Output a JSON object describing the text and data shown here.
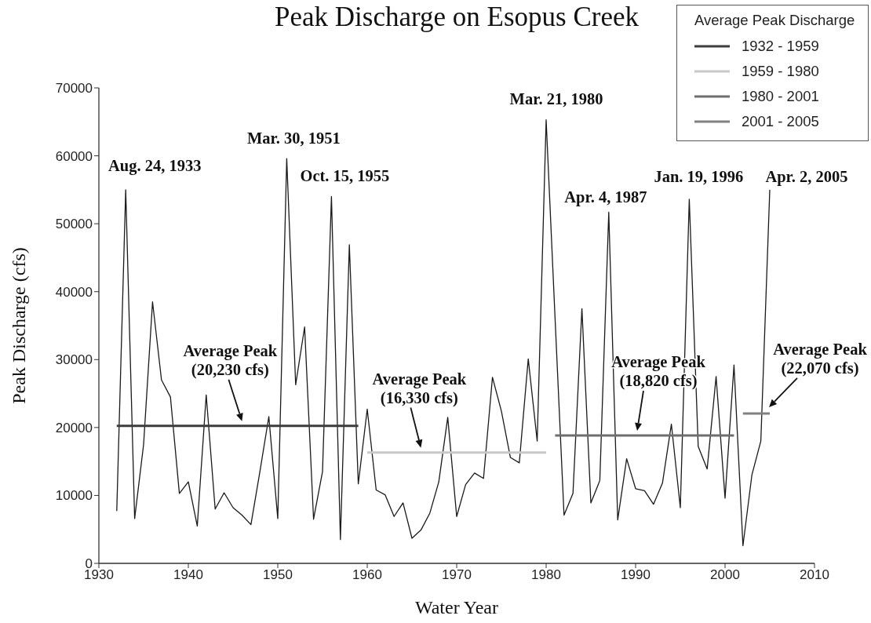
{
  "chart_data": {
    "type": "line",
    "title": "Peak Discharge on Esopus Creek",
    "xlabel": "Water Year",
    "ylabel": "Peak Discharge (cfs)",
    "legend_title": "Average Peak Discharge",
    "x": [
      1932,
      1933,
      1934,
      1935,
      1936,
      1937,
      1938,
      1939,
      1940,
      1941,
      1942,
      1943,
      1944,
      1945,
      1946,
      1947,
      1948,
      1949,
      1950,
      1951,
      1952,
      1953,
      1954,
      1955,
      1956,
      1957,
      1958,
      1959,
      1960,
      1961,
      1962,
      1963,
      1964,
      1965,
      1966,
      1967,
      1968,
      1969,
      1970,
      1971,
      1972,
      1973,
      1974,
      1975,
      1976,
      1977,
      1978,
      1979,
      1980,
      1981,
      1982,
      1983,
      1984,
      1985,
      1986,
      1987,
      1988,
      1989,
      1990,
      1991,
      1992,
      1993,
      1994,
      1995,
      1996,
      1997,
      1998,
      1999,
      2000,
      2001,
      2002,
      2003,
      2004,
      2005
    ],
    "series": [
      {
        "color": "#1a1a1a",
        "values": [
          7700,
          55000,
          6600,
          17500,
          38500,
          27000,
          24500,
          10300,
          12000,
          5500,
          24800,
          8000,
          10400,
          8200,
          7100,
          5700,
          13500,
          21600,
          6600,
          59600,
          26300,
          34800,
          6500,
          13500,
          54000,
          3500,
          46900,
          11700,
          22700,
          10800,
          10100,
          6900,
          8900,
          3700,
          4900,
          7400,
          12000,
          21500,
          6900,
          11600,
          13300,
          12500,
          27400,
          22400,
          15600,
          14800,
          30100,
          18000,
          65300,
          36000,
          7100,
          10300,
          37500,
          8900,
          12200,
          51700,
          6400,
          15400,
          11000,
          10700,
          8700,
          11800,
          20500,
          8200,
          53600,
          17200,
          13900,
          27500,
          9600,
          29200,
          2600,
          13000,
          18000,
          55000
        ]
      },
      {
        "name": "1932 - 1959",
        "color": "#3c3c3c",
        "x": [
          1932,
          1959
        ],
        "values": [
          20230,
          20230
        ]
      },
      {
        "name": "1959 - 1980",
        "color": "#c8c8c8",
        "x": [
          1960,
          1980
        ],
        "values": [
          16330,
          16330
        ]
      },
      {
        "name": "1980 - 2001",
        "color": "#6e6e6e",
        "x": [
          1981,
          2001
        ],
        "values": [
          18820,
          18820
        ]
      },
      {
        "name": "2001 - 2005",
        "color": "#808080",
        "x": [
          2002,
          2005
        ],
        "values": [
          22070,
          22070
        ]
      }
    ],
    "xlim": [
      1930,
      2010
    ],
    "xticks": [
      1930,
      1940,
      1950,
      1960,
      1970,
      1980,
      1990,
      2000,
      2010
    ],
    "ylim": [
      0,
      70000
    ],
    "yticks": [
      0,
      10000,
      20000,
      30000,
      40000,
      50000,
      60000,
      70000
    ],
    "legend": "top right",
    "marker": "none",
    "line_style": "solid",
    "annotations": [
      {
        "text": "Aug. 24, 1933",
        "x": 1933,
        "y": 55000
      },
      {
        "text": "Mar. 30, 1951",
        "x": 1951,
        "y": 59600
      },
      {
        "text": "Oct. 15, 1955",
        "x": 1956,
        "y": 54000
      },
      {
        "text": "Mar. 21, 1980",
        "x": 1980,
        "y": 65300
      },
      {
        "text": "Apr. 4, 1987",
        "x": 1987,
        "y": 51700
      },
      {
        "text": "Jan. 19, 1996",
        "x": 1996,
        "y": 53600
      },
      {
        "text": "Apr. 2, 2005",
        "x": 2005,
        "y": 55000
      },
      {
        "text": "Average Peak\n(20,230 cfs)",
        "x": 1946,
        "y": 20230
      },
      {
        "text": "Average Peak\n(16,330 cfs)",
        "x": 1966,
        "y": 16330
      },
      {
        "text": "Average Peak\n(18,820 cfs)",
        "x": 1990,
        "y": 18820
      },
      {
        "text": "Average Peak\n(22,070 cfs)",
        "x": 2005,
        "y": 22070
      }
    ]
  }
}
